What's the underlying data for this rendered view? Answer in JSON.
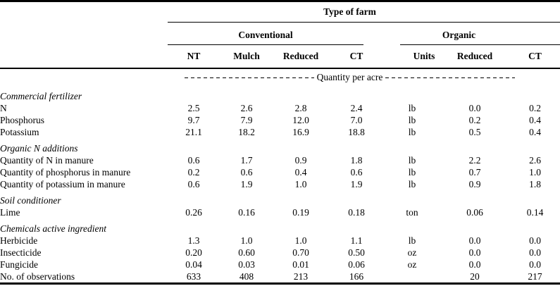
{
  "colors": {
    "background": "#ffffff",
    "text": "#000000",
    "rule": "#000000"
  },
  "table": {
    "title": "Type of farm",
    "groups": {
      "conventional": "Conventional",
      "organic": "Organic"
    },
    "columns": [
      "NT",
      "Mulch",
      "Reduced",
      "CT",
      "Units",
      "Reduced",
      "CT"
    ],
    "banner": "Quantity per acre",
    "rows": [
      {
        "type": "section",
        "label": "Commercial fertilizer"
      },
      {
        "type": "data",
        "label": "N",
        "values": [
          "2.5",
          "2.6",
          "2.8",
          "2.4",
          "lb",
          "0.0",
          "0.2"
        ]
      },
      {
        "type": "data",
        "label": "Phosphorus",
        "values": [
          "9.7",
          "7.9",
          "12.0",
          "7.0",
          "lb",
          "0.2",
          "0.4"
        ]
      },
      {
        "type": "data",
        "label": "Potassium",
        "values": [
          "21.1",
          "18.2",
          "16.9",
          "18.8",
          "lb",
          "0.5",
          "0.4"
        ]
      },
      {
        "type": "section",
        "label": "Organic N additions"
      },
      {
        "type": "data",
        "label": "Quantity of N in manure",
        "values": [
          "0.6",
          "1.7",
          "0.9",
          "1.8",
          "lb",
          "2.2",
          "2.6"
        ]
      },
      {
        "type": "data",
        "label": "Quantity of phosphorus in manure",
        "values": [
          "0.2",
          "0.6",
          "0.4",
          "0.6",
          "lb",
          "0.7",
          "1.0"
        ]
      },
      {
        "type": "data",
        "label": "Quantity of potassium in manure",
        "values": [
          "0.6",
          "1.9",
          "1.0",
          "1.9",
          "lb",
          "0.9",
          "1.8"
        ]
      },
      {
        "type": "section",
        "label": "Soil conditioner"
      },
      {
        "type": "data",
        "label": "Lime",
        "values": [
          "0.26",
          "0.16",
          "0.19",
          "0.18",
          "ton",
          "0.06",
          "0.14"
        ]
      },
      {
        "type": "section",
        "label": "Chemicals active ingredient"
      },
      {
        "type": "data",
        "label": "Herbicide",
        "values": [
          "1.3",
          "1.0",
          "1.0",
          "1.1",
          "lb",
          "0.0",
          "0.0"
        ]
      },
      {
        "type": "data",
        "label": "Insecticide",
        "values": [
          "0.20",
          "0.60",
          "0.70",
          "0.50",
          "oz",
          "0.0",
          "0.0"
        ]
      },
      {
        "type": "data",
        "label": "Fungicide",
        "values": [
          "0.04",
          "0.03",
          "0.01",
          "0.06",
          "oz",
          "0.0",
          "0.0"
        ]
      },
      {
        "type": "data",
        "label": "No. of observations",
        "values": [
          "633",
          "408",
          "213",
          "166",
          "",
          "20",
          "217"
        ]
      }
    ]
  }
}
